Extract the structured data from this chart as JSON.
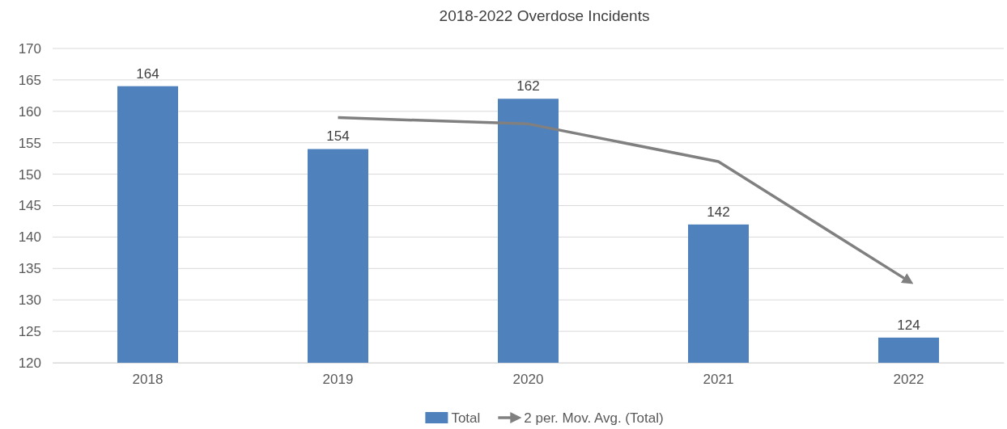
{
  "chart_data": {
    "type": "bar",
    "title": "2018-2022 Overdose Incidents",
    "categories": [
      "2018",
      "2019",
      "2020",
      "2021",
      "2022"
    ],
    "series": [
      {
        "name": "Total",
        "color": "#4f81bd",
        "values": [
          164,
          154,
          162,
          142,
          124
        ],
        "value_labels": [
          "164",
          "154",
          "162",
          "142",
          "124"
        ]
      },
      {
        "name": "2 per. Mov. Avg. (Total)",
        "type": "line",
        "color": "#808080",
        "values": [
          null,
          159,
          158,
          152,
          133
        ]
      }
    ],
    "ylim": [
      120,
      170
    ],
    "yticks": [
      120,
      125,
      130,
      135,
      140,
      145,
      150,
      155,
      160,
      165,
      170
    ],
    "grid": "y",
    "legend": "bottom"
  }
}
